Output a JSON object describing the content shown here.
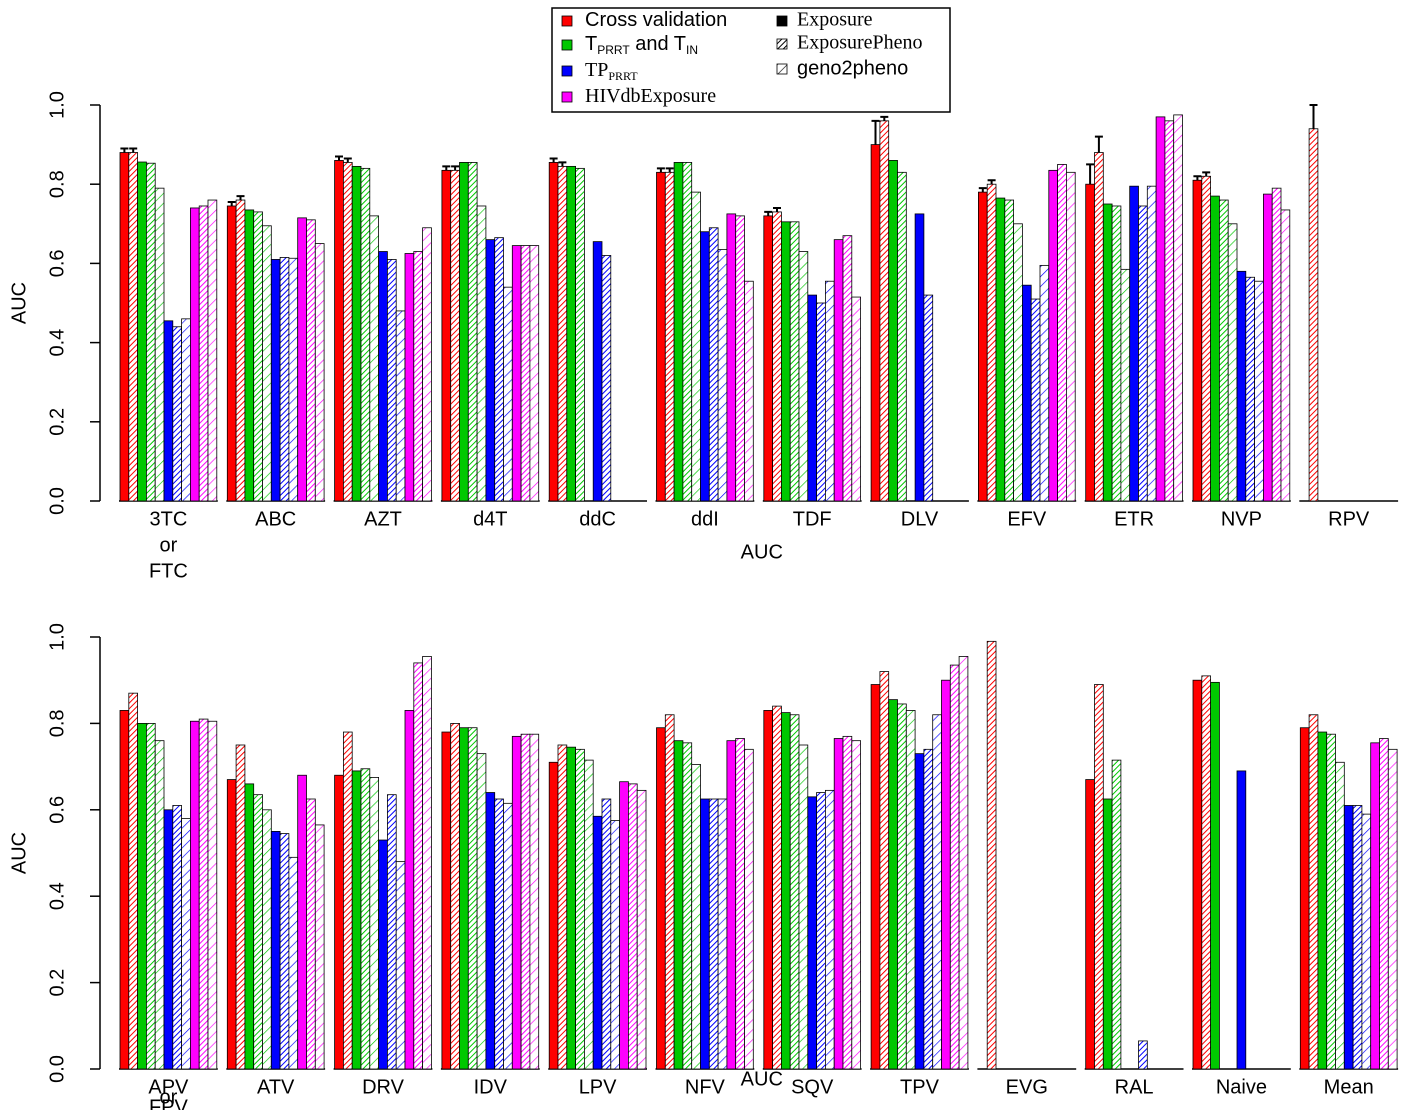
{
  "legend": {
    "methods": [
      {
        "name": [
          {
            "text": "Cross validation"
          }
        ],
        "color": "#ff0000",
        "font": "sans"
      },
      {
        "name": [
          {
            "text": "T"
          },
          {
            "text": "PRRT",
            "sub": true
          },
          {
            "text": " and T"
          },
          {
            "text": "IN",
            "sub": true
          }
        ],
        "color": "#00c800",
        "font": "sans"
      },
      {
        "name": [
          {
            "text": "TP"
          },
          {
            "text": "PRRT",
            "sub": true
          }
        ],
        "color": "#0000ff",
        "font": "serif"
      },
      {
        "name": [
          {
            "text": "HIVdbExposure"
          }
        ],
        "color": "#ff00ff",
        "font": "serif"
      }
    ],
    "datasets": [
      {
        "name": "Exposure",
        "pattern": "solid",
        "font": "serif"
      },
      {
        "name": "ExposurePheno",
        "pattern": "dense",
        "font": "serif"
      },
      {
        "name": "geno2pheno",
        "pattern": "sparse",
        "font": "sans"
      }
    ]
  },
  "chart_data": [
    {
      "type": "bar",
      "y_label": "AUC",
      "x_label": "AUC",
      "categories": [
        [
          "3TC",
          "or",
          "FTC"
        ],
        [
          "ABC"
        ],
        [
          "AZT"
        ],
        [
          "d4T"
        ],
        [
          "ddC"
        ],
        [
          "ddI"
        ],
        [
          "TDF"
        ],
        [
          "DLV"
        ],
        [
          "EFV"
        ],
        [
          "ETR"
        ],
        [
          "NVP"
        ],
        [
          "RPV"
        ]
      ],
      "ylim": [
        0,
        1
      ],
      "yticks": [
        {
          "value": 0,
          "label": "0.0"
        },
        0.2,
        0.4,
        0.6,
        0.8,
        {
          "value": 1,
          "label": "1.0"
        }
      ],
      "series": [
        {
          "values": [
            [
              0.88,
              0.88
            ],
            [
              0.745,
              0.76
            ],
            [
              0.86,
              0.855
            ],
            [
              0.835,
              0.835
            ],
            [
              0.855,
              0.845
            ],
            [
              0.83,
              0.83
            ],
            [
              0.72,
              0.73
            ],
            [
              0.9,
              0.96
            ],
            [
              0.78,
              0.8
            ],
            [
              0.8,
              0.88
            ],
            [
              0.81,
              0.82
            ],
            [
              null,
              0.94
            ]
          ],
          "errors": [
            [
              0.01,
              0.01
            ],
            [
              0.01,
              0.01
            ],
            [
              0.01,
              0.01
            ],
            [
              0.01,
              0.01
            ],
            [
              0.01,
              0.01
            ],
            [
              0.01,
              0.01
            ],
            [
              0.01,
              0.01
            ],
            [
              0.06,
              0.01
            ],
            [
              0.01,
              0.01
            ],
            [
              0.05,
              0.04
            ],
            [
              0.01,
              0.01
            ],
            [
              null,
              0.06
            ]
          ]
        },
        {
          "values": [
            [
              0.856,
              0.853,
              0.79
            ],
            [
              0.735,
              0.73,
              0.695
            ],
            [
              0.845,
              0.84,
              0.72
            ],
            [
              0.855,
              0.855,
              0.745
            ],
            [
              0.845,
              0.84,
              null
            ],
            [
              0.855,
              0.855,
              0.78
            ],
            [
              0.705,
              0.705,
              0.63
            ],
            [
              0.86,
              0.83,
              null
            ],
            [
              0.765,
              0.76,
              0.7
            ],
            [
              0.75,
              0.745,
              0.585
            ],
            [
              0.77,
              0.76,
              0.7
            ],
            [
              null,
              null,
              null
            ]
          ]
        },
        {
          "values": [
            [
              0.455,
              0.44,
              0.46
            ],
            [
              0.61,
              0.615,
              0.613
            ],
            [
              0.63,
              0.61,
              0.48
            ],
            [
              0.66,
              0.665,
              0.54
            ],
            [
              0.655,
              0.62,
              null
            ],
            [
              0.68,
              0.69,
              0.635
            ],
            [
              0.52,
              0.5,
              0.555
            ],
            [
              0.725,
              0.52,
              null
            ],
            [
              0.545,
              0.51,
              0.595
            ],
            [
              0.795,
              0.745,
              0.795
            ],
            [
              0.58,
              0.565,
              0.555
            ],
            [
              null,
              null,
              null
            ]
          ]
        },
        {
          "values": [
            [
              0.74,
              0.745,
              0.76
            ],
            [
              0.715,
              0.71,
              0.65
            ],
            [
              0.625,
              0.63,
              0.69
            ],
            [
              0.645,
              0.645,
              0.645
            ],
            [
              null,
              null,
              null
            ],
            [
              0.725,
              0.72,
              0.555
            ],
            [
              0.66,
              0.67,
              0.515
            ],
            [
              null,
              null,
              null
            ],
            [
              0.835,
              0.85,
              0.83
            ],
            [
              0.97,
              0.96,
              0.975
            ],
            [
              0.775,
              0.79,
              0.735
            ],
            [
              null,
              null,
              null
            ]
          ]
        }
      ]
    },
    {
      "type": "bar",
      "y_label": "AUC",
      "x_label": "AUC",
      "categories": [
        [
          "APV",
          "or",
          "FPV"
        ],
        [
          "ATV"
        ],
        [
          "DRV"
        ],
        [
          "IDV"
        ],
        [
          "LPV"
        ],
        [
          "NFV"
        ],
        [
          "SQV"
        ],
        [
          "TPV"
        ],
        [
          "EVG"
        ],
        [
          "RAL"
        ],
        [
          "Naive"
        ],
        [
          "Mean"
        ]
      ],
      "ylim": [
        0,
        1
      ],
      "yticks": [
        {
          "value": 0,
          "label": "0.0"
        },
        0.2,
        0.4,
        0.6,
        0.8,
        {
          "value": 1,
          "label": "1.0"
        }
      ],
      "series": [
        {
          "values": [
            [
              0.83,
              0.87
            ],
            [
              0.67,
              0.75
            ],
            [
              0.68,
              0.78
            ],
            [
              0.78,
              0.8
            ],
            [
              0.71,
              0.75
            ],
            [
              0.79,
              0.82
            ],
            [
              0.83,
              0.84
            ],
            [
              0.89,
              0.92
            ],
            [
              null,
              0.99
            ],
            [
              0.67,
              0.89
            ],
            [
              0.9,
              0.91
            ],
            [
              0.79,
              0.82
            ]
          ]
        },
        {
          "values": [
            [
              0.8,
              0.8,
              0.76
            ],
            [
              0.66,
              0.635,
              0.6
            ],
            [
              0.69,
              0.695,
              0.675
            ],
            [
              0.79,
              0.79,
              0.73
            ],
            [
              0.745,
              0.74,
              0.715
            ],
            [
              0.76,
              0.755,
              0.705
            ],
            [
              0.825,
              0.82,
              0.75
            ],
            [
              0.855,
              0.845,
              0.83
            ],
            [
              null,
              null,
              null
            ],
            [
              0.625,
              0.715,
              null
            ],
            [
              0.895,
              null,
              null
            ],
            [
              0.78,
              0.775,
              0.71
            ]
          ]
        },
        {
          "values": [
            [
              0.6,
              0.61,
              0.58
            ],
            [
              0.55,
              0.545,
              0.49
            ],
            [
              0.53,
              0.635,
              0.48
            ],
            [
              0.64,
              0.625,
              0.615
            ],
            [
              0.585,
              0.625,
              0.575
            ],
            [
              0.625,
              0.625,
              0.625
            ],
            [
              0.63,
              0.64,
              0.645
            ],
            [
              0.73,
              0.74,
              0.82
            ],
            [
              null,
              null,
              null
            ],
            [
              null,
              0.065,
              null
            ],
            [
              0.69,
              null,
              null
            ],
            [
              0.61,
              0.61,
              0.59
            ]
          ]
        },
        {
          "values": [
            [
              0.805,
              0.81,
              0.805
            ],
            [
              0.68,
              0.625,
              0.565
            ],
            [
              0.83,
              0.94,
              0.955
            ],
            [
              0.77,
              0.775,
              0.775
            ],
            [
              0.665,
              0.66,
              0.645
            ],
            [
              0.76,
              0.765,
              0.74
            ],
            [
              0.765,
              0.77,
              0.76
            ],
            [
              0.9,
              0.935,
              0.955
            ],
            [
              null,
              null,
              null
            ],
            [
              null,
              null,
              null
            ],
            [
              null,
              null,
              null
            ],
            [
              0.755,
              0.765,
              0.74
            ]
          ]
        }
      ]
    }
  ]
}
